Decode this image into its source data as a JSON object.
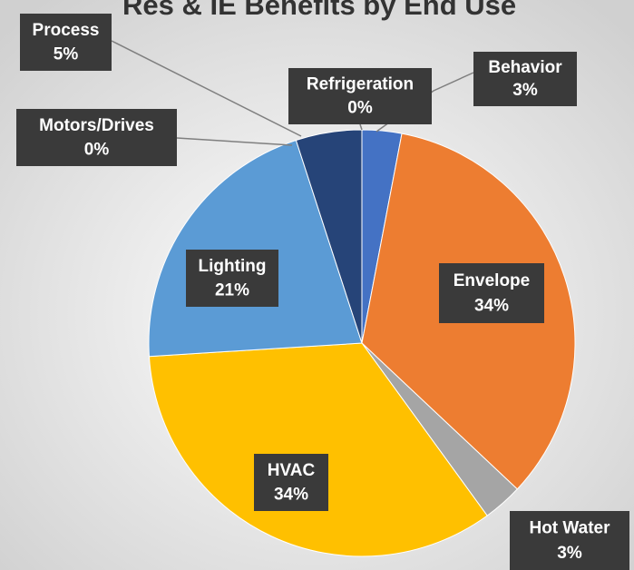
{
  "chart_data": {
    "type": "pie",
    "title": "Res & IE Benefits by End Use",
    "categories": [
      "Behavior",
      "Envelope",
      "Hot Water",
      "HVAC",
      "Lighting",
      "Motors/Drives",
      "Process",
      "Refrigeration"
    ],
    "values": [
      3,
      34,
      3,
      34,
      21,
      0,
      5,
      0
    ],
    "value_labels": [
      "3%",
      "34%",
      "3%",
      "34%",
      "21%",
      "0%",
      "5%",
      "0%"
    ],
    "colors": [
      "#4472c4",
      "#ed7d31",
      "#a5a5a5",
      "#ffc000",
      "#5b9bd5",
      "#70ad47",
      "#264478",
      "#9e480e"
    ]
  }
}
